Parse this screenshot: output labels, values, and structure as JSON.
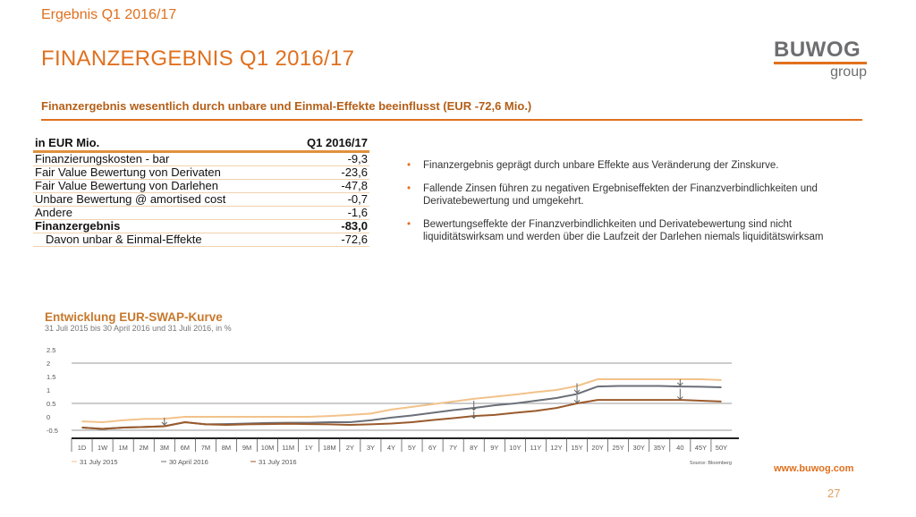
{
  "header": {
    "kicker": "Ergebnis Q1 2016/17",
    "title": "FINANZERGEBNIS Q1 2016/17",
    "subtitle": "Finanzergebnis wesentlich durch unbare und Einmal-Effekte beeinflusst (EUR -72,6 Mio.)"
  },
  "logo": {
    "name": "BUWOG",
    "sub": "group"
  },
  "table": {
    "headers": [
      "in EUR Mio.",
      "Q1 2016/17"
    ],
    "rows": [
      {
        "label": "Finanzierungskosten - bar",
        "value": "-9,3"
      },
      {
        "label": "Fair Value Bewertung von Derivaten",
        "value": "-23,6"
      },
      {
        "label": "Fair Value Bewertung von Darlehen",
        "value": "-47,8"
      },
      {
        "label": "Unbare Bewertung @ amortised cost",
        "value": "-0,7"
      },
      {
        "label": "Andere",
        "value": "-1,6"
      },
      {
        "label": "Finanzergebnis",
        "value": "-83,0"
      },
      {
        "label": "Davon unbar & Einmal-Effekte",
        "value": "-72,6"
      }
    ]
  },
  "bullets": [
    "Finanzergebnis geprägt durch unbare Effekte aus Veränderung der Zinskurve.",
    "Fallende Zinsen führen zu negativen Ergebniseffekten der Finanzverbindlichkeiten und Derivatebewertung und umgekehrt.",
    "Bewertungseffekte der Finanzverbindlichkeiten und Derivatebewertung sind nicht liquiditätswirksam und werden über die Laufzeit der Darlehen niemals liquiditätswirksam"
  ],
  "chart_data": {
    "type": "line",
    "title": "Entwicklung EUR-SWAP-Kurve",
    "subtitle": "31 Juli 2015 bis 30 April 2016 und 31 Juli 2016, in %",
    "source": "Source: Bloomberg",
    "yticks": [
      "2.5",
      "2",
      "1.5",
      "1",
      "0.5",
      "0",
      "-0.5"
    ],
    "ylim": [
      -0.5,
      2.5
    ],
    "categories": [
      "1D",
      "1W",
      "1M",
      "2M",
      "3M",
      "6M",
      "7M",
      "8M",
      "9M",
      "10M",
      "11M",
      "1Y",
      "18M",
      "2Y",
      "3Y",
      "4Y",
      "5Y",
      "6Y",
      "7Y",
      "8Y",
      "9Y",
      "10Y",
      "11Y",
      "12Y",
      "15Y",
      "20Y",
      "25Y",
      "30Y",
      "35Y",
      "40",
      "45Y",
      "50Y"
    ],
    "series": [
      {
        "name": "31 July 2015",
        "color": "#f2c28a",
        "values": [
          -0.17,
          -0.2,
          -0.13,
          -0.08,
          -0.07,
          0,
          0,
          0,
          0,
          0,
          0,
          0,
          0.03,
          0.07,
          0.12,
          0.27,
          0.37,
          0.47,
          0.57,
          0.67,
          0.75,
          0.83,
          0.92,
          1.0,
          1.15,
          1.4,
          1.4,
          1.4,
          1.4,
          1.4,
          1.4,
          1.37
        ]
      },
      {
        "name": "30 April 2016",
        "color": "#6b6f78",
        "values": [
          -0.4,
          -0.45,
          -0.4,
          -0.38,
          -0.35,
          -0.2,
          -0.28,
          -0.27,
          -0.25,
          -0.23,
          -0.22,
          -0.22,
          -0.2,
          -0.2,
          -0.13,
          -0.03,
          0.05,
          0.15,
          0.25,
          0.33,
          0.43,
          0.5,
          0.6,
          0.7,
          0.85,
          1.13,
          1.15,
          1.15,
          1.15,
          1.13,
          1.12,
          1.1
        ]
      },
      {
        "name": "31 July 2016",
        "color": "#9a5a2c",
        "values": [
          -0.4,
          -0.45,
          -0.4,
          -0.38,
          -0.35,
          -0.2,
          -0.28,
          -0.3,
          -0.28,
          -0.27,
          -0.26,
          -0.27,
          -0.28,
          -0.3,
          -0.28,
          -0.25,
          -0.2,
          -0.12,
          -0.05,
          0.03,
          0.07,
          0.15,
          0.22,
          0.33,
          0.5,
          0.63,
          0.63,
          0.63,
          0.63,
          0.63,
          0.6,
          0.57
        ]
      }
    ]
  },
  "footer": {
    "url": "www.buwog.com",
    "page": "27"
  }
}
